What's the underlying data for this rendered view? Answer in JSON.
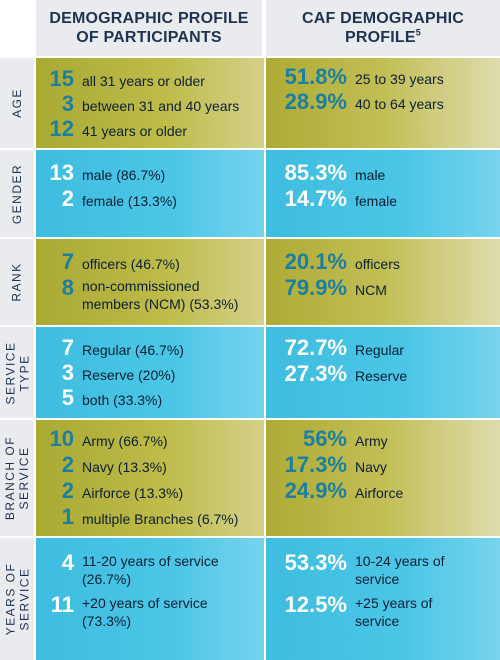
{
  "header": {
    "left_line1": "DEMOGRAPHIC PROFILE",
    "left_line2": "OF PARTICIPANTS",
    "right_line1": "CAF DEMOGRAPHIC",
    "right_line2": "PROFILE",
    "right_sup": "5"
  },
  "colors": {
    "olive": "#b5b33e",
    "blue": "#4cc6e6",
    "header_bg": "#e9ebee",
    "navy_text": "#1e3350",
    "teal_number": "#1a7fa0"
  },
  "rows": [
    {
      "label": "AGE",
      "left": [
        {
          "num": "15",
          "text": "all 31 years or older"
        },
        {
          "num": "3",
          "text": "between 31 and 40 years"
        },
        {
          "num": "12",
          "text": "41 years or older"
        }
      ],
      "right": [
        {
          "num": "51.8%",
          "text": "25 to 39 years"
        },
        {
          "num": "28.9%",
          "text": "40 to 64 years"
        }
      ]
    },
    {
      "label": "GENDER",
      "left": [
        {
          "num": "13",
          "text": "male (86.7%)"
        },
        {
          "num": "2",
          "text": "female (13.3%)"
        }
      ],
      "right": [
        {
          "num": "85.3%",
          "text": "male"
        },
        {
          "num": "14.7%",
          "text": "female"
        }
      ]
    },
    {
      "label": "RANK",
      "left": [
        {
          "num": "7",
          "text": "officers (46.7%)"
        },
        {
          "num": "8",
          "text_line1": "non-commissioned",
          "text_line2": "members (NCM) (53.3%)"
        }
      ],
      "right": [
        {
          "num": "20.1%",
          "text": "officers"
        },
        {
          "num": "79.9%",
          "text": "NCM"
        }
      ]
    },
    {
      "label_line1": "SERVICE",
      "label_line2": "TYPE",
      "left": [
        {
          "num": "7",
          "text": "Regular (46.7%)"
        },
        {
          "num": "3",
          "text": "Reserve (20%)"
        },
        {
          "num": "5",
          "text": "both (33.3%)"
        }
      ],
      "right": [
        {
          "num": "72.7%",
          "text": "Regular"
        },
        {
          "num": "27.3%",
          "text": "Reserve"
        }
      ]
    },
    {
      "label_line1": "BRANCH OF",
      "label_line2": "SERVICE",
      "left": [
        {
          "num": "10",
          "text": "Army (66.7%)"
        },
        {
          "num": "2",
          "text": "Navy (13.3%)"
        },
        {
          "num": "2",
          "text": "Airforce (13.3%)"
        },
        {
          "num": "1",
          "text": "multiple Branches (6.7%)"
        }
      ],
      "right": [
        {
          "num": "56%",
          "text": "Army"
        },
        {
          "num": "17.3%",
          "text": "Navy"
        },
        {
          "num": "24.9%",
          "text": "Airforce"
        }
      ]
    },
    {
      "label_line1": "YEARS OF",
      "label_line2": "SERVICE",
      "left": [
        {
          "num": "4",
          "text_line1": "11-20 years of service",
          "text_line2": "(26.7%)"
        },
        {
          "num": "11",
          "text_line1": "+20 years of service",
          "text_line2": "(73.3%)"
        }
      ],
      "right": [
        {
          "num": "53.3%",
          "text_line1": "10-24 years of",
          "text_line2": "service"
        },
        {
          "num": "12.5%",
          "text_line1": "+25 years of",
          "text_line2": "service"
        }
      ]
    }
  ]
}
